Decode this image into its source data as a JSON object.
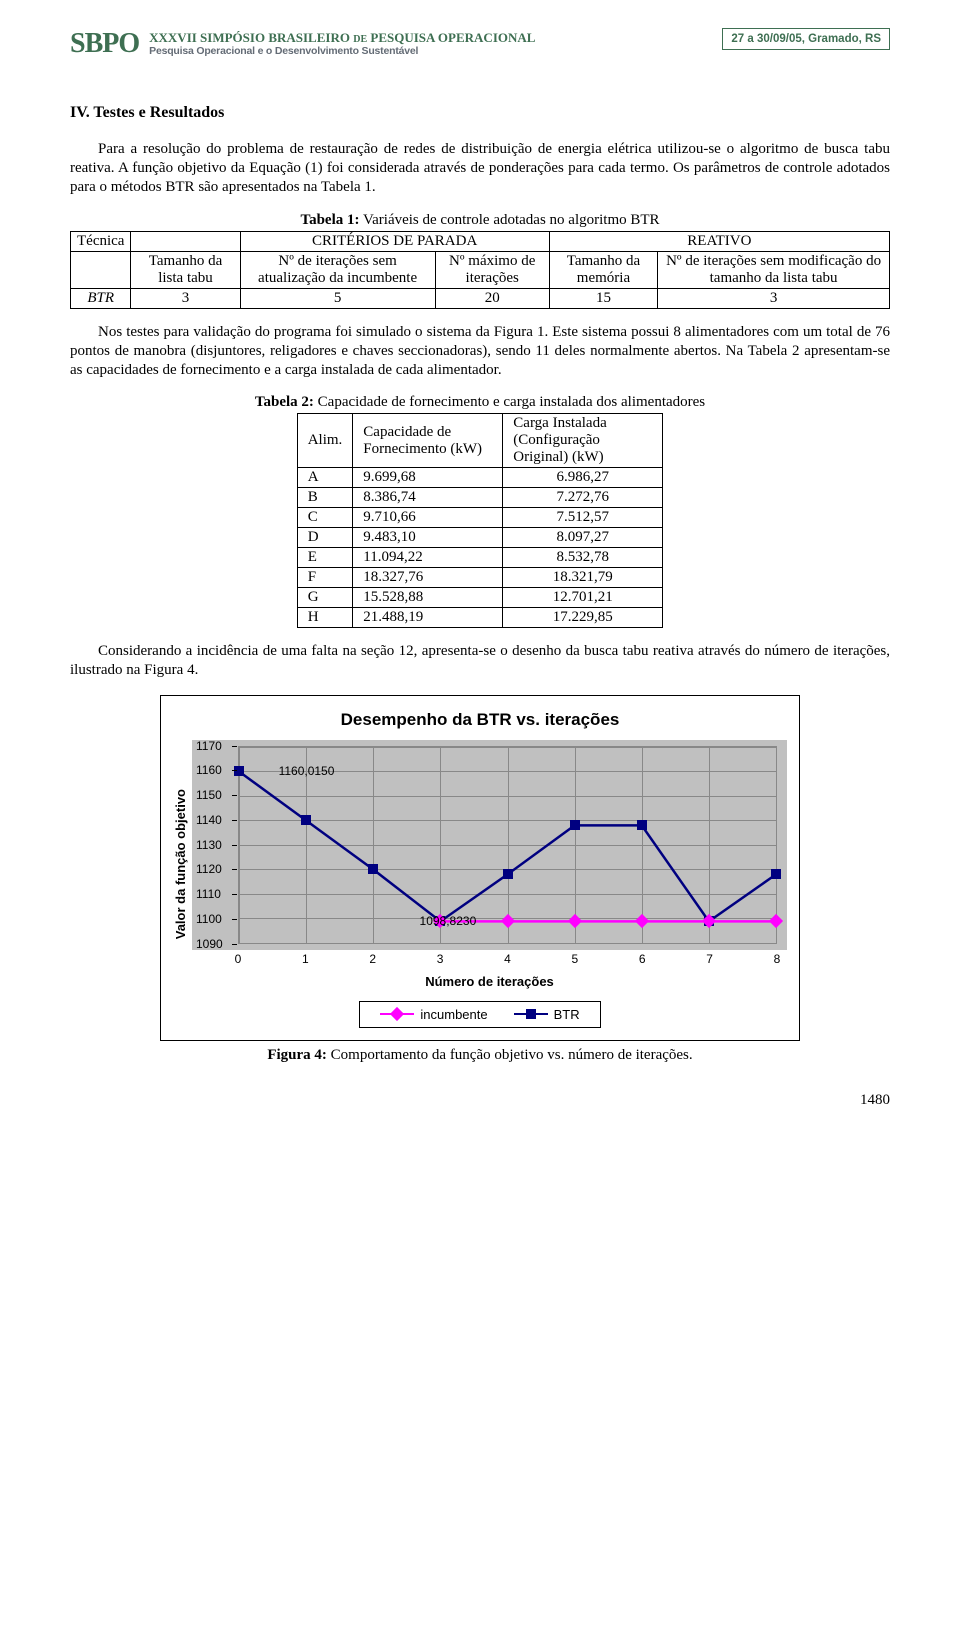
{
  "header": {
    "logo_text": "SBPO",
    "event_line1_a": "XXXVII SIMPÓSIO BRASILEIRO ",
    "event_line1_b": "DE",
    "event_line1_c": " PESQUISA OPERACIONAL",
    "event_line2": "Pesquisa Operacional e o Desenvolvimento Sustentável",
    "date_place": "27 a 30/09/05, Gramado, RS"
  },
  "section_title": "IV. Testes e Resultados",
  "para1": "Para a resolução do problema de restauração de redes de distribuição de energia elétrica utilizou-se o algoritmo de busca tabu reativa. A função objetivo da Equação (1) foi considerada através de ponderações para cada termo. Os parâmetros de controle adotados para o métodos BTR são apresentados na Tabela 1.",
  "table1": {
    "caption_b": "Tabela 1:",
    "caption_rest": " Variáveis de controle adotadas no algoritmo BTR",
    "row_head_tecnica": "Técnica",
    "col_parada": "CRITÉRIOS DE PARADA",
    "col_reativo": "REATIVO",
    "h_tam_lista": "Tamanho da lista tabu",
    "h_iter_inc": "Nº de iterações sem atualização da incumbente",
    "h_max_iter": "Nº máximo de iterações",
    "h_tam_mem": "Tamanho da memória",
    "h_iter_mod": "Nº de iterações sem modificação do tamanho da lista tabu",
    "btr_label": "BTR",
    "vals": [
      "3",
      "5",
      "20",
      "15",
      "3"
    ]
  },
  "para2": "Nos testes para validação do programa foi simulado o sistema da Figura 1. Este sistema possui 8 alimentadores com um total de 76 pontos de manobra (disjuntores, religadores e chaves seccionadoras), sendo 11 deles normalmente abertos. Na Tabela 2 apresentam-se as capacidades de fornecimento e a carga instalada de cada alimentador.",
  "table2": {
    "caption_b": "Tabela 2:",
    "caption_rest": " Capacidade de fornecimento e carga instalada dos alimentadores",
    "h_alim": "Alim.",
    "h_cap": "Capacidade de Fornecimento (kW)",
    "h_carga": "Carga Instalada (Configuração Original) (kW)",
    "rows": [
      [
        "A",
        "9.699,68",
        "6.986,27"
      ],
      [
        "B",
        "8.386,74",
        "7.272,76"
      ],
      [
        "C",
        "9.710,66",
        "7.512,57"
      ],
      [
        "D",
        "9.483,10",
        "8.097,27"
      ],
      [
        "E",
        "11.094,22",
        "8.532,78"
      ],
      [
        "F",
        "18.327,76",
        "18.321,79"
      ],
      [
        "G",
        "15.528,88",
        "12.701,21"
      ],
      [
        "H",
        "21.488,19",
        "17.229,85"
      ]
    ]
  },
  "para3": "Considerando a incidência de uma falta na seção 12, apresenta-se o desenho da busca tabu reativa através do número de iterações, ilustrado na Figura 4.",
  "chart": {
    "type": "line",
    "title": "Desempenho da BTR vs. iterações",
    "ylabel": "Valor da função objetivo",
    "xlabel": "Número de iterações",
    "yticks": [
      1090,
      1100,
      1110,
      1120,
      1130,
      1140,
      1150,
      1160,
      1170
    ],
    "ylim": [
      1090,
      1170
    ],
    "xticks": [
      0,
      1,
      2,
      3,
      4,
      5,
      6,
      7,
      8
    ],
    "xlim": [
      0,
      8
    ],
    "background_color": "#c0c0c0",
    "grid_color": "#888888",
    "series": {
      "btr": {
        "label": "BTR",
        "color": "#000080",
        "marker": "square",
        "marker_size": 10,
        "line_width": 2.5,
        "x": [
          0,
          1,
          2,
          3,
          4,
          5,
          6,
          7,
          8
        ],
        "y": [
          1160.015,
          1140,
          1120,
          1098.823,
          1118,
          1138,
          1138,
          1098.823,
          1118
        ]
      },
      "incumbente": {
        "label": "incumbente",
        "color": "#ff00ff",
        "marker": "diamond",
        "marker_size": 10,
        "line_width": 2.5,
        "x": [
          3,
          4,
          5,
          6,
          7,
          8
        ],
        "y": [
          1098.823,
          1098.823,
          1098.823,
          1098.823,
          1098.823,
          1098.823
        ]
      }
    },
    "data_labels": [
      {
        "text": "1160,0150",
        "near_x": 0.5,
        "near_y": 1160
      },
      {
        "text": "1098,8230",
        "near_x": 2.6,
        "near_y": 1098.823
      }
    ]
  },
  "fig_caption_b": "Figura 4:",
  "fig_caption_rest": " Comportamento da função objetivo vs. número de iterações.",
  "page_number": "1480"
}
